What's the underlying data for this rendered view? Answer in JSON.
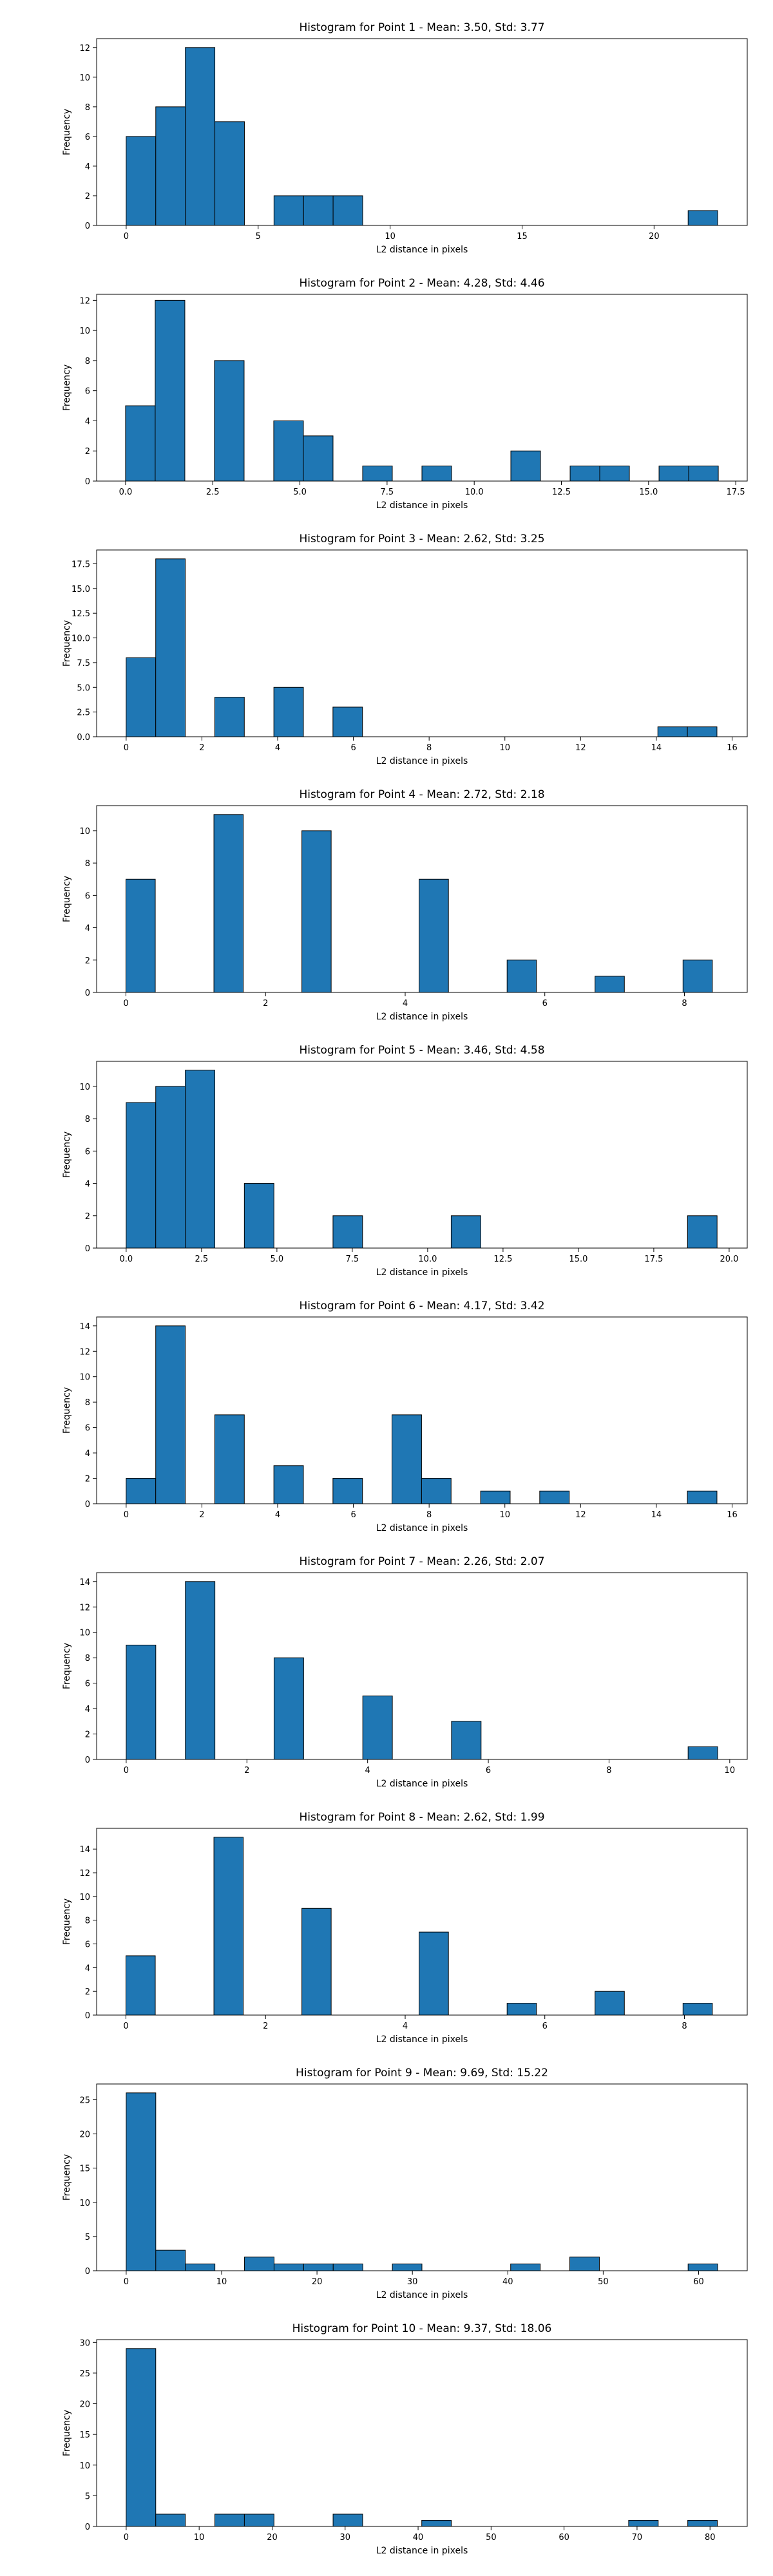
{
  "chart_data": [
    {
      "type": "bar",
      "title": "Histogram for Point 1 - Mean: 3.50, Std: 3.77",
      "xlabel": "L2 distance in pixels",
      "ylabel": "Frequency",
      "xlim": [
        -1.12,
        23.53
      ],
      "ylim": [
        0,
        12.6
      ],
      "xticks": [
        0,
        5,
        10,
        15,
        20
      ],
      "xtick_labels": [
        "0",
        "5",
        "10",
        "15",
        "20"
      ],
      "yticks": [
        0,
        2,
        4,
        6,
        8,
        10,
        12
      ],
      "ytick_labels": [
        "0",
        "2",
        "4",
        "6",
        "8",
        "10",
        "12"
      ],
      "bins": [
        [
          0,
          1.12,
          6
        ],
        [
          1.12,
          2.24,
          8
        ],
        [
          2.24,
          3.36,
          12
        ],
        [
          3.36,
          4.48,
          7
        ],
        [
          5.6,
          6.72,
          2
        ],
        [
          6.72,
          7.84,
          2
        ],
        [
          7.84,
          8.96,
          2
        ],
        [
          21.29,
          22.41,
          1
        ]
      ]
    },
    {
      "type": "bar",
      "title": "Histogram for Point 2 - Mean: 4.28, Std: 4.46",
      "xlabel": "L2 distance in pixels",
      "ylabel": "Frequency",
      "xlim": [
        -0.83,
        17.83
      ],
      "ylim": [
        0,
        12.4
      ],
      "xticks": [
        0,
        2.5,
        5,
        7.5,
        10,
        12.5,
        15,
        17.5
      ],
      "xtick_labels": [
        "0.0",
        "2.5",
        "5.0",
        "7.5",
        "10.0",
        "12.5",
        "15.0",
        "17.5"
      ],
      "yticks": [
        0,
        2,
        4,
        6,
        8,
        10,
        12
      ],
      "ytick_labels": [
        "0",
        "2",
        "4",
        "6",
        "8",
        "10",
        "12"
      ],
      "bins": [
        [
          0,
          0.85,
          5
        ],
        [
          0.85,
          1.7,
          12
        ],
        [
          2.55,
          3.4,
          8
        ],
        [
          4.25,
          5.1,
          4
        ],
        [
          5.1,
          5.95,
          3
        ],
        [
          6.8,
          7.65,
          1
        ],
        [
          8.5,
          9.35,
          1
        ],
        [
          11.05,
          11.9,
          2
        ],
        [
          12.75,
          13.6,
          1
        ],
        [
          13.6,
          14.45,
          1
        ],
        [
          15.3,
          16.15,
          1
        ],
        [
          16.15,
          17.0,
          1
        ]
      ]
    },
    {
      "type": "bar",
      "title": "Histogram for Point 3 - Mean: 2.62, Std: 3.25",
      "xlabel": "L2 distance in pixels",
      "ylabel": "Frequency",
      "xlim": [
        -0.78,
        16.4
      ],
      "ylim": [
        0,
        18.9
      ],
      "xticks": [
        0,
        2,
        4,
        6,
        8,
        10,
        12,
        14,
        16
      ],
      "xtick_labels": [
        "0",
        "2",
        "4",
        "6",
        "8",
        "10",
        "12",
        "14",
        "16"
      ],
      "yticks": [
        0,
        2.5,
        5,
        7.5,
        10,
        12.5,
        15,
        17.5
      ],
      "ytick_labels": [
        "0.0",
        "2.5",
        "5.0",
        "7.5",
        "10.0",
        "12.5",
        "15.0",
        "17.5"
      ],
      "bins": [
        [
          0,
          0.78,
          8
        ],
        [
          0.78,
          1.56,
          18
        ],
        [
          2.34,
          3.12,
          4
        ],
        [
          3.9,
          4.68,
          5
        ],
        [
          5.46,
          6.24,
          3
        ],
        [
          14.04,
          14.82,
          1
        ],
        [
          14.82,
          15.6,
          1
        ]
      ]
    },
    {
      "type": "bar",
      "title": "Histogram for Point 4 - Mean: 2.72, Std: 2.18",
      "xlabel": "L2 distance in pixels",
      "ylabel": "Frequency",
      "xlim": [
        -0.42,
        8.9
      ],
      "ylim": [
        0,
        11.55
      ],
      "xticks": [
        0,
        2,
        4,
        6,
        8
      ],
      "xtick_labels": [
        "0",
        "2",
        "4",
        "6",
        "8"
      ],
      "yticks": [
        0,
        2,
        4,
        6,
        8,
        10
      ],
      "ytick_labels": [
        "0",
        "2",
        "4",
        "6",
        "8",
        "10"
      ],
      "bins": [
        [
          0,
          0.42,
          7
        ],
        [
          1.26,
          1.68,
          11
        ],
        [
          2.52,
          2.94,
          10
        ],
        [
          4.2,
          4.62,
          7
        ],
        [
          5.46,
          5.88,
          2
        ],
        [
          6.72,
          7.14,
          1
        ],
        [
          7.98,
          8.4,
          2
        ]
      ]
    },
    {
      "type": "bar",
      "title": "Histogram for Point 5 - Mean: 3.46, Std: 4.58",
      "xlabel": "L2 distance in pixels",
      "ylabel": "Frequency",
      "xlim": [
        -0.98,
        20.6
      ],
      "ylim": [
        0,
        11.55
      ],
      "xticks": [
        0,
        2.5,
        5,
        7.5,
        10,
        12.5,
        15,
        17.5,
        20
      ],
      "xtick_labels": [
        "0.0",
        "2.5",
        "5.0",
        "7.5",
        "10.0",
        "12.5",
        "15.0",
        "17.5",
        "20.0"
      ],
      "yticks": [
        0,
        2,
        4,
        6,
        8,
        10
      ],
      "ytick_labels": [
        "0",
        "2",
        "4",
        "6",
        "8",
        "10"
      ],
      "bins": [
        [
          0,
          0.98,
          9
        ],
        [
          0.98,
          1.96,
          10
        ],
        [
          1.96,
          2.94,
          11
        ],
        [
          3.92,
          4.9,
          4
        ],
        [
          6.86,
          7.84,
          2
        ],
        [
          10.78,
          11.76,
          2
        ],
        [
          18.62,
          19.6,
          2
        ]
      ]
    },
    {
      "type": "bar",
      "title": "Histogram for Point 6 - Mean: 4.17, Std: 3.42",
      "xlabel": "L2 distance in pixels",
      "ylabel": "Frequency",
      "xlim": [
        -0.78,
        16.4
      ],
      "ylim": [
        0,
        14.7
      ],
      "xticks": [
        0,
        2,
        4,
        6,
        8,
        10,
        12,
        14,
        16
      ],
      "xtick_labels": [
        "0",
        "2",
        "4",
        "6",
        "8",
        "10",
        "12",
        "14",
        "16"
      ],
      "yticks": [
        0,
        2,
        4,
        6,
        8,
        10,
        12,
        14
      ],
      "ytick_labels": [
        "0",
        "2",
        "4",
        "6",
        "8",
        "10",
        "12",
        "14"
      ],
      "bins": [
        [
          0,
          0.78,
          2
        ],
        [
          0.78,
          1.56,
          14
        ],
        [
          2.34,
          3.12,
          7
        ],
        [
          3.9,
          4.68,
          3
        ],
        [
          5.46,
          6.24,
          2
        ],
        [
          7.02,
          7.8,
          7
        ],
        [
          7.8,
          8.58,
          2
        ],
        [
          9.36,
          10.14,
          1
        ],
        [
          10.92,
          11.7,
          1
        ],
        [
          14.82,
          15.6,
          1
        ]
      ]
    },
    {
      "type": "bar",
      "title": "Histogram for Point 7 - Mean: 2.26, Std: 2.07",
      "xlabel": "L2 distance in pixels",
      "ylabel": "Frequency",
      "xlim": [
        -0.49,
        10.29
      ],
      "ylim": [
        0,
        14.7
      ],
      "xticks": [
        0,
        2,
        4,
        6,
        8,
        10
      ],
      "xtick_labels": [
        "0",
        "2",
        "4",
        "6",
        "8",
        "10"
      ],
      "yticks": [
        0,
        2,
        4,
        6,
        8,
        10,
        12,
        14
      ],
      "ytick_labels": [
        "0",
        "2",
        "4",
        "6",
        "8",
        "10",
        "12",
        "14"
      ],
      "bins": [
        [
          0,
          0.49,
          9
        ],
        [
          0.98,
          1.47,
          14
        ],
        [
          2.45,
          2.94,
          8
        ],
        [
          3.92,
          4.41,
          5
        ],
        [
          5.39,
          5.88,
          3
        ],
        [
          9.31,
          9.8,
          1
        ]
      ]
    },
    {
      "type": "bar",
      "title": "Histogram for Point 8 - Mean: 2.62, Std: 1.99",
      "xlabel": "L2 distance in pixels",
      "ylabel": "Frequency",
      "xlim": [
        -0.42,
        8.9
      ],
      "ylim": [
        0,
        15.75
      ],
      "xticks": [
        0,
        2,
        4,
        6,
        8
      ],
      "xtick_labels": [
        "0",
        "2",
        "4",
        "6",
        "8"
      ],
      "yticks": [
        0,
        2,
        4,
        6,
        8,
        10,
        12,
        14
      ],
      "ytick_labels": [
        "0",
        "2",
        "4",
        "6",
        "8",
        "10",
        "12",
        "14"
      ],
      "bins": [
        [
          0,
          0.42,
          5
        ],
        [
          1.26,
          1.68,
          15
        ],
        [
          2.52,
          2.94,
          9
        ],
        [
          4.2,
          4.62,
          7
        ],
        [
          5.46,
          5.88,
          1
        ],
        [
          6.72,
          7.14,
          2
        ],
        [
          7.98,
          8.4,
          1
        ]
      ]
    },
    {
      "type": "bar",
      "title": "Histogram for Point 9 - Mean: 9.69, Std: 15.22",
      "xlabel": "L2 distance in pixels",
      "ylabel": "Frequency",
      "xlim": [
        -3.1,
        65.1
      ],
      "ylim": [
        0,
        27.3
      ],
      "xticks": [
        0,
        10,
        20,
        30,
        40,
        50,
        60
      ],
      "xtick_labels": [
        "0",
        "10",
        "20",
        "30",
        "40",
        "50",
        "60"
      ],
      "yticks": [
        0,
        5,
        10,
        15,
        20,
        25
      ],
      "ytick_labels": [
        "0",
        "5",
        "10",
        "15",
        "20",
        "25"
      ],
      "bins": [
        [
          0,
          3.1,
          26
        ],
        [
          3.1,
          6.2,
          3
        ],
        [
          6.2,
          9.3,
          1
        ],
        [
          12.4,
          15.5,
          2
        ],
        [
          15.5,
          18.6,
          1
        ],
        [
          18.6,
          21.7,
          1
        ],
        [
          21.7,
          24.8,
          1
        ],
        [
          27.9,
          31.0,
          1
        ],
        [
          40.3,
          43.4,
          1
        ],
        [
          46.5,
          49.6,
          2
        ],
        [
          58.9,
          62.0,
          1
        ]
      ]
    },
    {
      "type": "bar",
      "title": "Histogram for Point 10 - Mean: 9.37, Std: 18.06",
      "xlabel": "L2 distance in pixels",
      "ylabel": "Frequency",
      "xlim": [
        -4.05,
        85.1
      ],
      "ylim": [
        0,
        30.45
      ],
      "xticks": [
        0,
        10,
        20,
        30,
        40,
        50,
        60,
        70,
        80
      ],
      "xtick_labels": [
        "0",
        "10",
        "20",
        "30",
        "40",
        "50",
        "60",
        "70",
        "80"
      ],
      "yticks": [
        0,
        5,
        10,
        15,
        20,
        25,
        30
      ],
      "ytick_labels": [
        "0",
        "5",
        "10",
        "15",
        "20",
        "25",
        "30"
      ],
      "bins": [
        [
          0,
          4.05,
          29
        ],
        [
          4.05,
          8.1,
          2
        ],
        [
          12.15,
          16.2,
          2
        ],
        [
          16.2,
          20.25,
          2
        ],
        [
          28.35,
          32.4,
          2
        ],
        [
          40.5,
          44.55,
          1
        ],
        [
          68.85,
          72.9,
          1
        ],
        [
          76.95,
          81.0,
          1
        ]
      ]
    }
  ]
}
